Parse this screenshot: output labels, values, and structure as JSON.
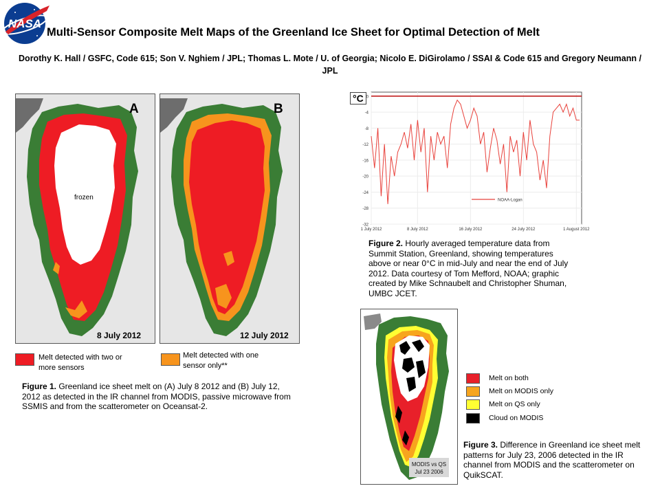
{
  "header": {
    "title": "Multi-Sensor Composite Melt Maps of the Greenland Ice Sheet for Optimal Detection of Melt",
    "authors": "Dorothy K. Hall / GSFC, Code 615; Son V. Nghiem / JPL; Thomas L. Mote / U. of Georgia; Nicolo E. DiGirolamo / SSAI & Code 615 and Gregory Neumann / JPL",
    "logo_text": "NASA"
  },
  "figure1": {
    "map_a": {
      "letter": "A",
      "date": "8 July 2012",
      "inner_label": "frozen"
    },
    "map_b": {
      "letter": "B",
      "date": "12 July 2012"
    },
    "legend": {
      "two_sensors": "Melt detected with two or more sensors",
      "one_sensor": "Melt detected with one sensor only**"
    },
    "caption_label": "Figure 1.",
    "caption_text": " Greenland ice sheet melt on (A) July 8 2012 and (B) July 12, 2012 as detected in the IR channel from MODIS, passive microwave from SSMIS and from the scatterometer on Oceansat-2."
  },
  "figure2": {
    "unit_label": "°C",
    "caption_label": "Figure 2.",
    "caption_text": "  Hourly averaged temperature data from Summit Station, Greenland, showing temperatures above or near 0°C in mid-July and near the end of July 2012.  Data courtesy of Tom Mefford, NOAA; graphic created by Mike Schnaubelt and Christopher Shuman, UMBC JCET."
  },
  "figure3": {
    "inset_label_line1": "MODIS vs QS",
    "inset_label_line2": "Jul 23 2006",
    "legend": [
      {
        "label": "Melt on both",
        "color": "#e8202a"
      },
      {
        "label": "Melt on MODIS only",
        "color": "#f7a51e"
      },
      {
        "label": "Melt on QS only",
        "color": "#ffff33"
      },
      {
        "label": "Cloud on MODIS",
        "color": "#000000"
      }
    ],
    "caption_label": "Figure 3.",
    "caption_text": " Difference in Greenland  ice sheet melt patterns for July 23, 2006 detected in the IR channel from MODIS and the scatterometer on QuikSCAT."
  },
  "colors": {
    "melt_two": "#ee1c24",
    "melt_one": "#f7941d",
    "land": "#3a7d35",
    "frozen": "#ffffff",
    "ocean": "#e6e6e6",
    "line": "#e8403a"
  },
  "chart_data": {
    "type": "line",
    "series": [
      {
        "name": "NOAA-Logan",
        "x": [
          0,
          0.5,
          1,
          1.5,
          2,
          2.5,
          3,
          3.5,
          4,
          4.5,
          5,
          5.5,
          6,
          6.5,
          7,
          7.5,
          8,
          8.5,
          9,
          9.5,
          10,
          10.5,
          11,
          11.5,
          12,
          12.5,
          13,
          13.5,
          14,
          14.5,
          15,
          15.5,
          16,
          16.5,
          17,
          17.5,
          18,
          18.5,
          19,
          19.5,
          20,
          20.5,
          21,
          21.5,
          22,
          22.5,
          23,
          23.5,
          24,
          24.5,
          25,
          25.5,
          26,
          26.5,
          27,
          27.5,
          28,
          28.5,
          29,
          29.5,
          30,
          30.5,
          31,
          31.5
        ],
        "y": [
          -10,
          -18,
          -8,
          -25,
          -12,
          -27,
          -15,
          -20,
          -14,
          -12,
          -9,
          -13,
          -7,
          -16,
          -6,
          -14,
          -8,
          -24,
          -10,
          -16,
          -9,
          -12,
          -10,
          -18,
          -7,
          -3,
          -1,
          -2,
          -5,
          -8,
          -6,
          -3,
          -5,
          -12,
          -9,
          -19,
          -13,
          -8,
          -11,
          -17,
          -12,
          -24,
          -10,
          -14,
          -11,
          -20,
          -9,
          -16,
          -6,
          -12,
          -14,
          -21,
          -16,
          -23,
          -10,
          -4,
          -3,
          -2,
          -4,
          -2,
          -5,
          -3,
          -6,
          -6
        ]
      }
    ],
    "x_tick_labels": [
      "1 July 2012",
      "8 July 2012",
      "16 July 2012",
      "24 July 2012",
      "1 August 2012"
    ],
    "x_ticks": [
      0,
      7,
      15,
      23,
      31
    ],
    "y_ticks": [
      0,
      -4,
      -8,
      -12,
      -16,
      -20,
      -24,
      -28,
      -32
    ],
    "ylim": [
      -32,
      1
    ],
    "xlim": [
      0,
      31.8
    ],
    "reference_line": 0,
    "ylabel": "°C"
  }
}
